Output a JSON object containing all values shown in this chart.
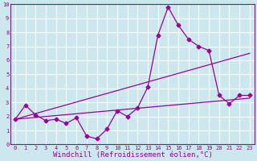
{
  "xlabel": "Windchill (Refroidissement éolien,°C)",
  "xlim": [
    -0.5,
    23.5
  ],
  "ylim": [
    0,
    10
  ],
  "xticks": [
    0,
    1,
    2,
    3,
    4,
    5,
    6,
    7,
    8,
    9,
    10,
    11,
    12,
    13,
    14,
    15,
    16,
    17,
    18,
    19,
    20,
    21,
    22,
    23
  ],
  "yticks": [
    0,
    1,
    2,
    3,
    4,
    5,
    6,
    7,
    8,
    9,
    10
  ],
  "line1_x": [
    0,
    1,
    2,
    3,
    4,
    5,
    6,
    7,
    8,
    9,
    10,
    11,
    12,
    13,
    14,
    15,
    16,
    17,
    18,
    19,
    20,
    21,
    22,
    23
  ],
  "line1_y": [
    1.8,
    2.8,
    2.1,
    1.7,
    1.8,
    1.5,
    1.9,
    0.6,
    0.4,
    1.1,
    2.4,
    2.0,
    2.6,
    4.1,
    7.8,
    9.8,
    8.5,
    7.5,
    7.0,
    6.7,
    3.5,
    2.9,
    3.5,
    3.5
  ],
  "line2_x": [
    0,
    23
  ],
  "line2_y": [
    1.8,
    3.3
  ],
  "line3_x": [
    0,
    23
  ],
  "line3_y": [
    1.8,
    6.5
  ],
  "color": "#990099",
  "bg_color": "#cce8ee",
  "grid_color": "#ffffff",
  "marker": "D",
  "marker_size": 2.5,
  "linewidth": 0.9,
  "tick_fontsize": 5.0,
  "xlabel_fontsize": 6.5
}
